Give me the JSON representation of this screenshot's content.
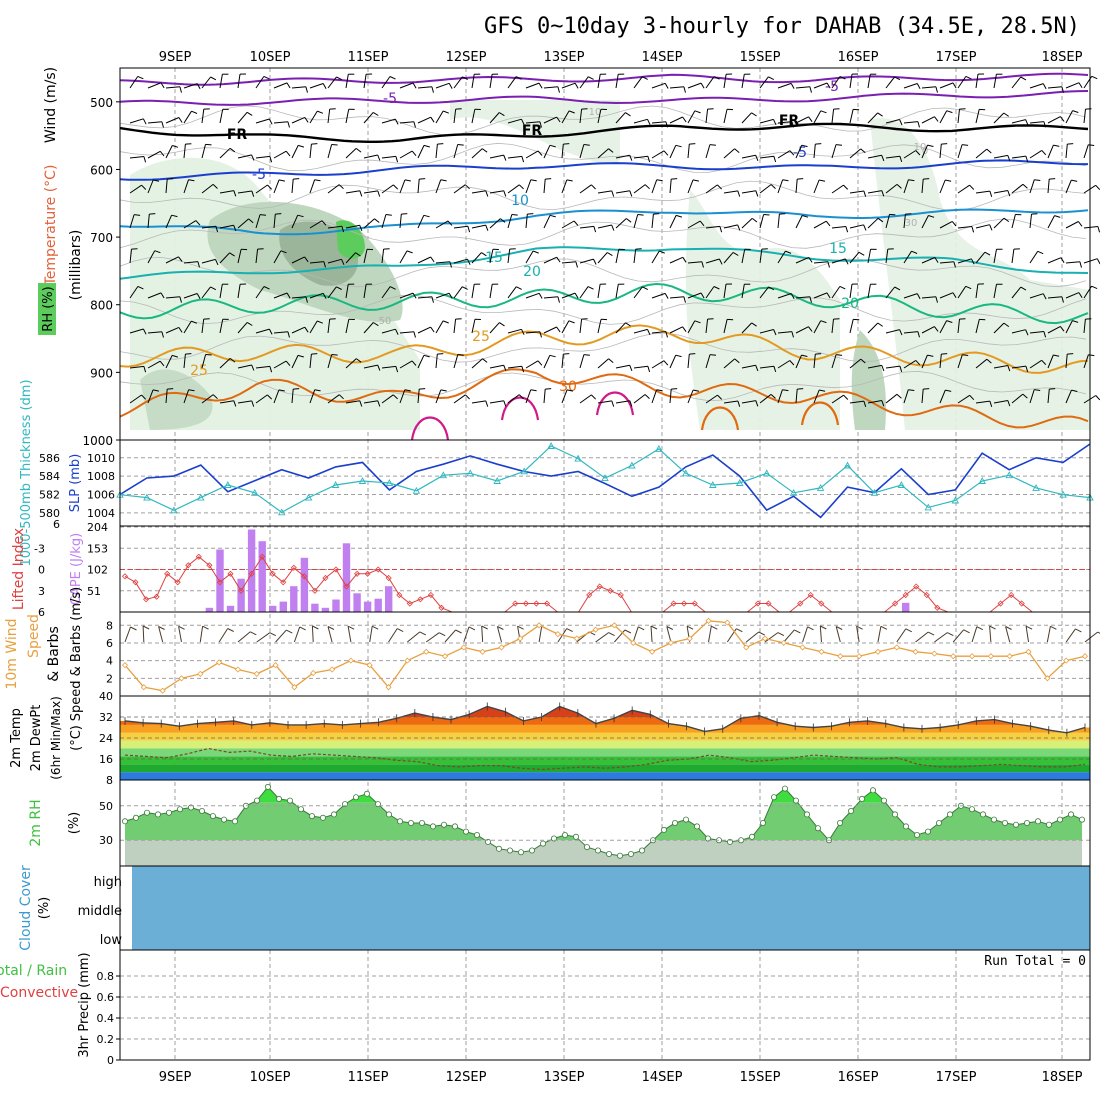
{
  "title": "GFS 0~10day 3-hourly for DAHAB (34.5E, 28.5N)",
  "colors": {
    "frame": "#000000",
    "grid": "#a0a0a0",
    "rh_fill_light": "#e3f1e3",
    "rh_fill_mid": "#bfd6bf",
    "rh_fill_dark": "#8faa8f",
    "rh_fill_bright": "#5ccc5c",
    "slp": "#1a3fcc",
    "thickness": "#30b8c0",
    "lifted_index": "#e04040",
    "cape": "#c080f0",
    "wind10": "#e8a040",
    "barb": "#000000",
    "rh2m": "#40c040",
    "cloud": "#6baed6"
  },
  "chart_data": [
    {
      "type": "contour",
      "panel": "upper-air",
      "ylabel": "(millibars)",
      "left_labels": [
        "Wind (m/s)",
        "Temperature (°C)",
        "RH (%)"
      ],
      "categories": [
        "9SEP",
        "10SEP",
        "11SEP",
        "12SEP",
        "13SEP",
        "14SEP",
        "15SEP",
        "16SEP",
        "17SEP",
        "18SEP"
      ],
      "y_ticks": [
        500,
        600,
        700,
        800,
        900,
        1000
      ],
      "ylim": [
        450,
        1000
      ],
      "contour_labels": [
        "-5",
        "-5",
        "FR",
        "FR",
        "FR",
        "-5",
        "-5",
        "10",
        "15",
        "15",
        "20",
        "20",
        "25",
        "25",
        "30",
        "10",
        "30",
        "50",
        "0",
        "10"
      ],
      "isotherms": [
        {
          "value": "-5",
          "color": "#7a1fb0",
          "levels": [
            503,
            500,
            498,
            496,
            499,
            495,
            490,
            488
          ]
        },
        {
          "value": "-5",
          "color": "#7a1fb0",
          "levels": [
            472,
            470,
            468,
            467,
            464,
            468,
            464,
            462
          ]
        },
        {
          "value": "FR",
          "color": "#000000",
          "levels": [
            540,
            552,
            556,
            548,
            538,
            536,
            540,
            538
          ]
        },
        {
          "value": "-5",
          "color": "#1a3fcc",
          "levels": [
            612,
            608,
            600,
            594,
            595,
            598,
            592,
            588
          ]
        },
        {
          "value": "10",
          "color": "#1a90d0",
          "levels": [
            680,
            694,
            686,
            668,
            660,
            670,
            664,
            658
          ]
        },
        {
          "value": "15",
          "color": "#18b0b0",
          "levels": [
            760,
            750,
            745,
            720,
            715,
            730,
            735,
            755
          ]
        },
        {
          "value": "20",
          "color": "#18b880",
          "levels": [
            810,
            800,
            795,
            790,
            780,
            790,
            808,
            818
          ]
        },
        {
          "value": "25",
          "color": "#e39a20",
          "levels": [
            880,
            870,
            875,
            850,
            840,
            870,
            880,
            895
          ]
        },
        {
          "value": "30",
          "color": "#e06a10",
          "levels": [
            955,
            920,
            940,
            900,
            925,
            935,
            960,
            980
          ]
        }
      ]
    },
    {
      "type": "line",
      "panel": "slp-thickness",
      "ylabel": "SLP (mb)",
      "y2label": "1000-500mb Thickness (dm)",
      "y_ticks": [
        1004,
        1006,
        1008,
        1010
      ],
      "y2_ticks": [
        580,
        582,
        584,
        586
      ],
      "y2_extra_tick": "6",
      "ylim": [
        1003,
        1011.5
      ],
      "series": [
        {
          "name": "SLP",
          "values": [
            1006.0,
            1007.8,
            1008.0,
            1009.2,
            1006.3,
            1007.5,
            1008.7,
            1007.8,
            1009.0,
            1009.5,
            1006.5,
            1008.5,
            1009.3,
            1010.2,
            1009.3,
            1008.5,
            1008.0,
            1008.5,
            1007.2,
            1005.8,
            1006.8,
            1009.0,
            1010.3,
            1008.0,
            1004.3,
            1005.8,
            1003.5,
            1006.8,
            1006.2,
            1008.8,
            1006.0,
            1006.5,
            1010.5,
            1008.7,
            1010.0,
            1009.5,
            1011.5
          ]
        },
        {
          "name": "Thickness",
          "values": [
            581.8,
            581.5,
            580.2,
            581.5,
            582.8,
            582.0,
            580.0,
            581.5,
            582.8,
            583.2,
            583.0,
            582.2,
            583.8,
            584.0,
            583.2,
            584.2,
            586.8,
            585.5,
            583.5,
            584.8,
            586.5,
            584.0,
            582.8,
            583.0,
            584.0,
            582.0,
            582.5,
            584.8,
            582.0,
            582.8,
            580.5,
            581.2,
            583.2,
            583.8,
            582.5,
            581.8,
            581.5
          ]
        }
      ]
    },
    {
      "type": "bar",
      "panel": "lifted-index-cape",
      "ylabel": "Lifted Index",
      "y2label": "CAPE (J/kg)",
      "y_ticks": [
        "-3",
        "0",
        "3",
        "6"
      ],
      "y2_ticks": [
        51,
        102,
        153,
        204
      ],
      "ylim": [
        0,
        204
      ],
      "series": [
        {
          "name": "CAPE",
          "values": [
            0,
            0,
            0,
            0,
            0,
            0,
            0,
            0,
            10,
            150,
            15,
            80,
            198,
            170,
            15,
            25,
            62,
            130,
            20,
            10,
            30,
            165,
            45,
            25,
            32,
            62,
            0,
            0,
            0,
            0,
            0,
            0,
            0,
            0,
            0,
            0,
            0,
            0,
            0,
            0,
            0,
            0,
            0,
            0,
            0,
            0,
            0,
            0,
            0,
            0,
            0,
            0,
            0,
            0,
            0,
            0,
            0,
            0,
            0,
            0,
            0,
            0,
            0,
            0,
            0,
            0,
            0,
            0,
            0,
            0,
            0,
            0,
            0,
            0,
            22,
            0,
            0,
            0,
            0,
            0,
            0,
            0,
            0,
            0,
            0,
            0,
            0,
            0,
            0,
            0,
            0,
            0
          ]
        },
        {
          "name": "Lifted Index",
          "values": [
            1.8,
            2.5,
            4.5,
            4.2,
            1.5,
            2.5,
            0.5,
            -0.5,
            0.5,
            2.5,
            1.5,
            3.5,
            1.5,
            -0.5,
            1.5,
            2.5,
            0.8,
            1.8,
            3.5,
            2.0,
            1.0,
            3.0,
            1.5,
            1.5,
            1.0,
            2.0,
            4.0,
            5.0,
            4.5,
            4.0,
            5.5,
            6.0,
            6.0,
            6.0,
            6.0,
            6.0,
            6.0,
            5.0,
            5.0,
            5.0,
            5.0,
            6.0,
            6.0,
            6.0,
            4.0,
            3.0,
            3.5,
            4.0,
            6.0,
            6.0,
            6.0,
            6.0,
            5.0,
            5.0,
            5.0,
            6.0,
            6.0,
            6.0,
            6.0,
            6.0,
            5.0,
            5.0,
            6.0,
            6.0,
            5.0,
            4.0,
            5.0,
            6.0,
            6.0,
            6.0,
            6.0,
            6.0,
            6.0,
            5.0,
            4.0,
            3.0,
            4.0,
            5.5,
            6.0,
            6.0,
            6.0,
            6.0,
            6.0,
            5.0,
            4.0,
            5.0,
            6.0,
            6.0,
            6.0,
            6.0,
            6.0,
            6.0
          ]
        }
      ]
    },
    {
      "type": "line",
      "panel": "wind10m",
      "ylabel": "Speed & Barbs (m/s)",
      "left_labels": [
        "10m Wind",
        "Speed",
        "& Barbs"
      ],
      "y_ticks": [
        2,
        4,
        6,
        8
      ],
      "ylim": [
        0,
        9.5
      ],
      "series": [
        {
          "name": "Speed",
          "values": [
            3.5,
            1.0,
            0.6,
            2.0,
            2.5,
            3.8,
            3.0,
            2.5,
            3.5,
            1.0,
            2.6,
            3.0,
            4.0,
            3.5,
            1.0,
            4.0,
            5.0,
            4.5,
            5.5,
            5.0,
            5.5,
            6.5,
            8.0,
            7.0,
            6.5,
            7.5,
            8.0,
            6.0,
            5.0,
            6.0,
            6.5,
            8.5,
            8.3,
            5.5,
            6.5,
            6.0,
            5.5,
            5.0,
            4.5,
            4.5,
            5.0,
            5.5,
            5.0,
            4.8,
            4.5,
            4.5,
            4.5,
            4.5,
            5.0,
            2.0,
            4.0,
            4.5
          ]
        }
      ]
    },
    {
      "type": "area",
      "panel": "temp-dewpt",
      "ylabel": "(°C)",
      "left_labels": [
        "2m Temp",
        "2m DewPt",
        "(6hr Min/Max)"
      ],
      "y_ticks": [
        8,
        16,
        24,
        32,
        40
      ],
      "ylim": [
        8,
        40
      ],
      "series": [
        {
          "name": "2m Temp",
          "values": [
            30.5,
            29.8,
            29.5,
            28.5,
            29.5,
            30.0,
            30.5,
            29.0,
            29.8,
            29.0,
            29.0,
            29.5,
            29.0,
            29.5,
            30.0,
            31.5,
            33.5,
            32.0,
            31.0,
            33.0,
            36.0,
            34.0,
            30.5,
            32.0,
            36.0,
            33.5,
            29.5,
            31.5,
            34.5,
            33.0,
            29.5,
            28.5,
            26.5,
            27.5,
            31.5,
            32.5,
            30.0,
            28.5,
            28.0,
            28.5,
            30.0,
            30.5,
            29.5,
            28.0,
            27.5,
            28.0,
            29.0,
            30.5,
            31.0,
            29.5,
            28.5,
            27.0,
            26.0,
            28.0
          ]
        },
        {
          "name": "2m DewPt",
          "values": [
            17.5,
            17.0,
            16.5,
            18.0,
            20.0,
            18.5,
            19.0,
            17.5,
            17.0,
            18.0,
            17.5,
            17.0,
            16.5,
            15.5,
            15.0,
            13.5,
            13.0,
            13.5,
            13.5,
            12.5,
            12.0,
            12.5,
            13.0,
            12.5,
            13.0,
            14.0,
            15.5,
            16.0,
            17.5,
            16.5,
            15.0,
            15.5,
            16.5,
            17.5,
            17.0,
            16.5,
            16.0,
            16.5,
            14.0,
            13.0,
            13.0,
            13.5,
            14.0,
            13.5,
            13.0,
            13.0,
            14.0
          ]
        }
      ]
    },
    {
      "type": "area",
      "panel": "rh2m",
      "ylabel": "(%)",
      "left_labels": [
        "2m RH"
      ],
      "y_ticks": [
        30,
        50
      ],
      "ylim": [
        15,
        65
      ],
      "series": [
        {
          "name": "2m RH",
          "values": [
            41,
            43,
            46,
            45,
            46,
            48,
            49,
            47,
            44,
            42,
            41,
            50,
            53,
            61,
            54,
            53,
            48,
            44,
            43,
            45,
            51,
            55,
            57,
            51,
            45,
            41,
            40,
            40,
            38,
            39,
            38,
            35,
            33,
            29,
            25,
            24,
            23,
            24,
            28,
            31,
            33,
            32,
            26,
            24,
            22,
            21,
            22,
            24,
            30,
            36,
            40,
            42,
            38,
            31,
            30,
            29,
            30,
            32,
            40,
            55,
            60,
            53,
            45,
            37,
            30,
            40,
            47,
            54,
            59,
            53,
            45,
            38,
            33,
            35,
            40,
            45,
            50,
            48,
            45,
            42,
            40,
            39,
            40,
            41,
            39,
            42,
            45,
            42
          ]
        }
      ]
    },
    {
      "type": "area",
      "panel": "cloud-cover",
      "left_labels": [
        "Cloud Cover",
        "(%)"
      ],
      "levels": [
        "high",
        "middle",
        "low"
      ],
      "values": [
        100
      ]
    },
    {
      "type": "bar",
      "panel": "precip",
      "ylabel": "3hr Precip (mm)",
      "left_labels": [
        "Total / Rain",
        "Convective"
      ],
      "y_ticks": [
        "0",
        "0.2",
        "0.4",
        "0.6",
        "0.8"
      ],
      "ylim": [
        0,
        1.0
      ],
      "run_total": "Run Total = 0",
      "values": []
    }
  ]
}
